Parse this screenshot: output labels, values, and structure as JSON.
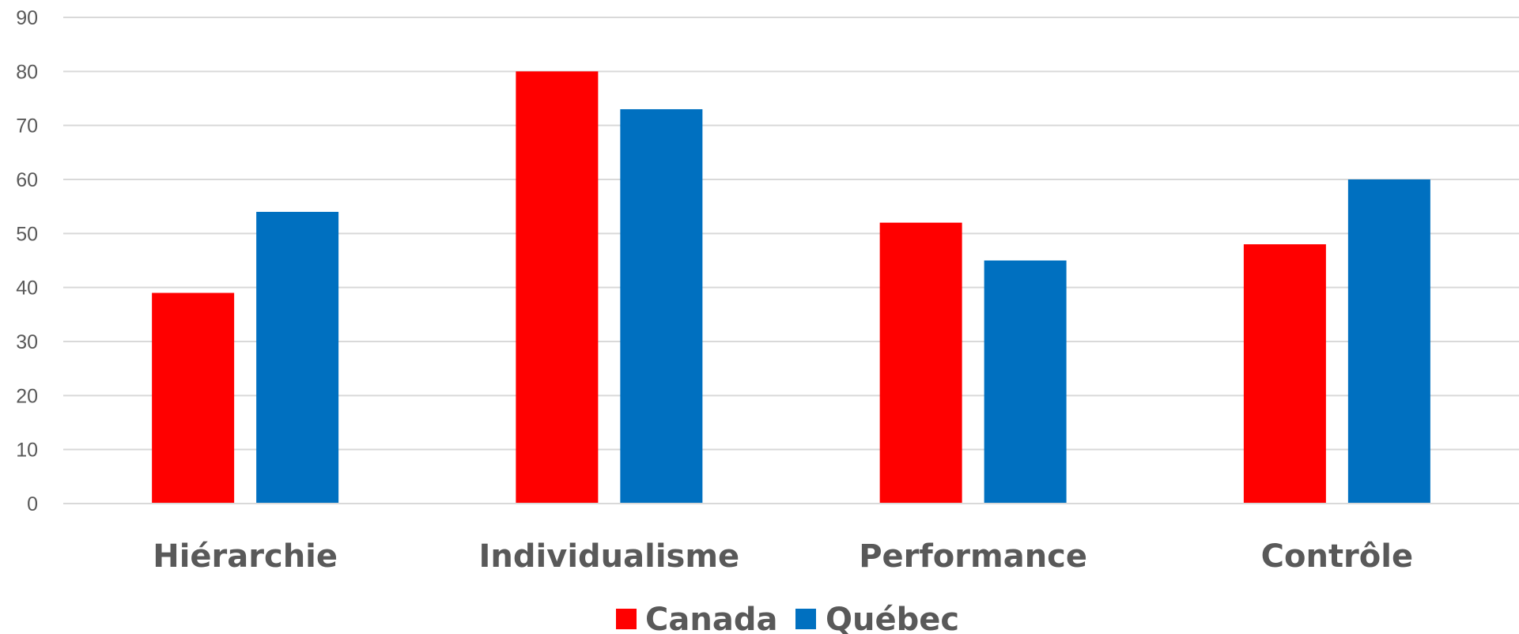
{
  "chart_data": {
    "type": "bar",
    "categories": [
      "Hiérarchie",
      "Individualisme",
      "Performance",
      "Contrôle"
    ],
    "series": [
      {
        "name": "Canada",
        "color": "#ff0000",
        "values": [
          39,
          80,
          52,
          48
        ]
      },
      {
        "name": "Québec",
        "color": "#0070c0",
        "values": [
          54,
          73,
          45,
          60
        ]
      }
    ],
    "yticks": [
      "0",
      "10",
      "20",
      "30",
      "40",
      "50",
      "60",
      "70",
      "80",
      "90"
    ],
    "ylim": [
      0,
      90
    ],
    "grid": true,
    "legend_position": "bottom",
    "title": "",
    "xlabel": "",
    "ylabel": ""
  }
}
